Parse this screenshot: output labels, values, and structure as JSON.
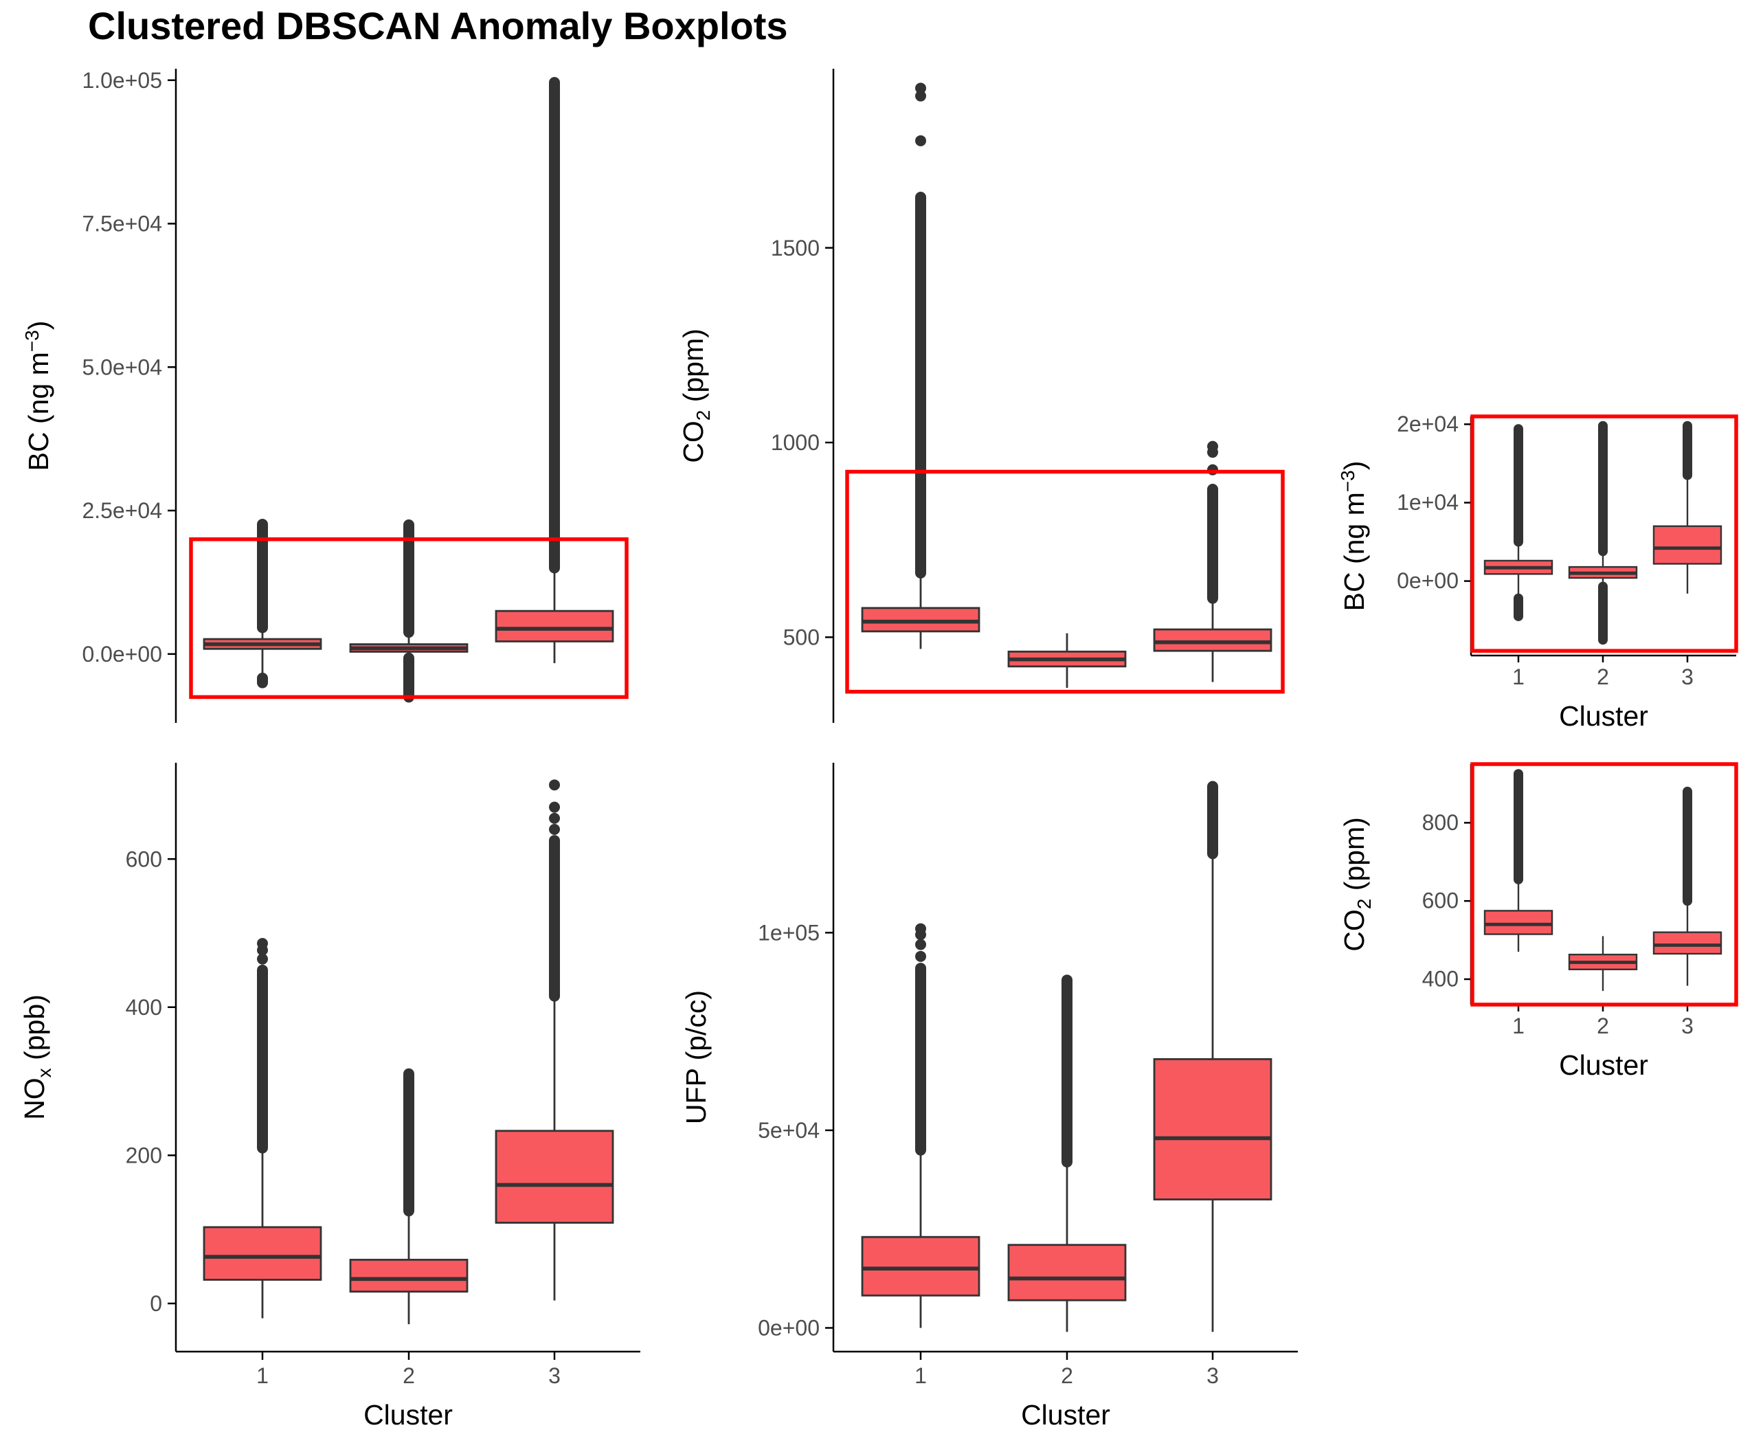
{
  "title": "Clustered DBSCAN Anomaly Boxplots",
  "colors": {
    "box_fill": "#F8595F",
    "box_line": "#333333",
    "outlier": "#333333",
    "axis": "#000000",
    "highlight": "#FF0000"
  },
  "chart_data": [
    {
      "id": "bc_main",
      "type": "box",
      "categories": [
        "1",
        "2",
        "3"
      ],
      "ylabel": "BC (ng m−3)",
      "ylabel_parts": [
        "BC (ng m",
        "−3",
        ")"
      ],
      "xlabel": "",
      "ylim": [
        -12000,
        102000
      ],
      "yticks": [
        0,
        25000,
        50000,
        75000,
        100000
      ],
      "ytick_labels": [
        "0.0e+00",
        "2.5e+04",
        "5.0e+04",
        "7.5e+04",
        "1.0e+05"
      ],
      "show_x_ticks": false,
      "boxes": [
        {
          "category": "1",
          "whisker_low": -4200,
          "q1": 900,
          "median": 1700,
          "q3": 2600,
          "whisker_high": 4600,
          "outliers_high": [
            4600,
            22600
          ],
          "outliers_low": [
            -4200,
            -5000
          ]
        },
        {
          "category": "2",
          "whisker_low": -700,
          "q1": 400,
          "median": 1000,
          "q3": 1700,
          "whisker_high": 3800,
          "outliers_high": [
            3800,
            22500
          ],
          "outliers_low": [
            -700,
            -7500
          ]
        },
        {
          "category": "3",
          "whisker_low": -1600,
          "q1": 2200,
          "median": 4400,
          "q3": 7500,
          "whisker_high": 15000,
          "outliers_high": [
            15000,
            99600
          ],
          "outliers_low": []
        }
      ],
      "highlight": {
        "y_range": [
          -7500,
          20000
        ]
      }
    },
    {
      "id": "co2_main",
      "type": "box",
      "categories": [
        "1",
        "2",
        "3"
      ],
      "ylabel": "CO2 (ppm)",
      "ylabel_parts": [
        "CO",
        "2",
        " (ppm)"
      ],
      "xlabel": "",
      "ylim": [
        280,
        1960
      ],
      "yticks": [
        500,
        1000,
        1500
      ],
      "ytick_labels": [
        "500",
        "1000",
        "1500"
      ],
      "show_x_ticks": false,
      "boxes": [
        {
          "category": "1",
          "whisker_low": 470,
          "q1": 515,
          "median": 540,
          "q3": 575,
          "whisker_high": 665,
          "outliers_high": [
            665,
            1630
          ],
          "outliers_extra": [
            1775,
            1890,
            1910
          ],
          "outliers_low": []
        },
        {
          "category": "2",
          "whisker_low": 370,
          "q1": 425,
          "median": 443,
          "q3": 463,
          "whisker_high": 510,
          "outliers_high": [],
          "outliers_low": []
        },
        {
          "category": "3",
          "whisker_low": 385,
          "q1": 465,
          "median": 487,
          "q3": 520,
          "whisker_high": 600,
          "outliers_high": [
            600,
            880
          ],
          "outliers_extra": [
            930,
            975,
            990
          ],
          "outliers_low": []
        }
      ],
      "highlight": {
        "y_range": [
          360,
          925
        ]
      }
    },
    {
      "id": "bc_inset",
      "type": "box",
      "categories": [
        "1",
        "2",
        "3"
      ],
      "ylabel": "BC (ng m−3)",
      "ylabel_parts": [
        "BC (ng m",
        "−3",
        ")"
      ],
      "xlabel": "Cluster",
      "ylim": [
        -9500,
        21000
      ],
      "yticks": [
        0,
        10000,
        20000
      ],
      "ytick_labels": [
        "0e+00",
        "1e+04",
        "2e+04"
      ],
      "show_x_ticks": true,
      "boxes": [
        {
          "category": "1",
          "whisker_low": -2200,
          "q1": 900,
          "median": 1700,
          "q3": 2600,
          "whisker_high": 5000,
          "outliers_high": [
            5000,
            19400
          ],
          "outliers_low": [
            -2200,
            -4500
          ]
        },
        {
          "category": "2",
          "whisker_low": -700,
          "q1": 400,
          "median": 1000,
          "q3": 1800,
          "whisker_high": 3800,
          "outliers_high": [
            3800,
            19800
          ],
          "outliers_low": [
            -700,
            -7500
          ]
        },
        {
          "category": "3",
          "whisker_low": -1600,
          "q1": 2200,
          "median": 4200,
          "q3": 7000,
          "whisker_high": 13500,
          "outliers_high": [
            13500,
            19800
          ],
          "outliers_low": []
        }
      ],
      "highlight": {
        "y_range": [
          -8900,
          21000
        ]
      }
    },
    {
      "id": "co2_inset",
      "type": "box",
      "categories": [
        "1",
        "2",
        "3"
      ],
      "ylabel": "CO2 (ppm)",
      "ylabel_parts": [
        "CO",
        "2",
        " (ppm)"
      ],
      "xlabel": "Cluster",
      "ylim": [
        335,
        950
      ],
      "yticks": [
        400,
        600,
        800
      ],
      "ytick_labels": [
        "400",
        "600",
        "800"
      ],
      "show_x_ticks": true,
      "boxes": [
        {
          "category": "1",
          "whisker_low": 470,
          "q1": 515,
          "median": 540,
          "q3": 575,
          "whisker_high": 655,
          "outliers_high": [
            655,
            925
          ],
          "outliers_low": []
        },
        {
          "category": "2",
          "whisker_low": 370,
          "q1": 425,
          "median": 443,
          "q3": 463,
          "whisker_high": 510,
          "outliers_high": [],
          "outliers_low": []
        },
        {
          "category": "3",
          "whisker_low": 383,
          "q1": 465,
          "median": 487,
          "q3": 520,
          "whisker_high": 600,
          "outliers_high": [
            600,
            880
          ],
          "outliers_low": []
        }
      ],
      "highlight": {
        "y_range": [
          335,
          950
        ]
      }
    },
    {
      "id": "nox_main",
      "type": "box",
      "categories": [
        "1",
        "2",
        "3"
      ],
      "ylabel": "NOx (ppb)",
      "ylabel_parts": [
        "NO",
        "x",
        " (ppb)"
      ],
      "xlabel": "Cluster",
      "ylim": [
        -65,
        730
      ],
      "yticks": [
        0,
        200,
        400,
        600
      ],
      "ytick_labels": [
        "0",
        "200",
        "400",
        "600"
      ],
      "show_x_ticks": true,
      "boxes": [
        {
          "category": "1",
          "whisker_low": -20,
          "q1": 32,
          "median": 63,
          "q3": 103,
          "whisker_high": 210,
          "outliers_high": [
            210,
            450
          ],
          "outliers_extra": [
            465,
            477,
            486
          ],
          "outliers_low": []
        },
        {
          "category": "2",
          "whisker_low": -28,
          "q1": 16,
          "median": 33,
          "q3": 59,
          "whisker_high": 125,
          "outliers_high": [
            125,
            310
          ],
          "outliers_low": []
        },
        {
          "category": "3",
          "whisker_low": 4,
          "q1": 109,
          "median": 160,
          "q3": 233,
          "whisker_high": 415,
          "outliers_high": [
            415,
            625
          ],
          "outliers_extra": [
            640,
            655,
            670,
            700
          ],
          "outliers_low": []
        }
      ]
    },
    {
      "id": "ufp_main",
      "type": "box",
      "categories": [
        "1",
        "2",
        "3"
      ],
      "ylabel": "UFP (p/cc)",
      "ylabel_parts": [
        "UFP (p/cc)",
        "",
        ""
      ],
      "xlabel": "Cluster",
      "ylim": [
        -6000,
        143000
      ],
      "yticks": [
        0,
        50000,
        100000
      ],
      "ytick_labels": [
        "0e+00",
        "5e+04",
        "1e+05"
      ],
      "show_x_ticks": true,
      "boxes": [
        {
          "category": "1",
          "whisker_low": 0,
          "q1": 8200,
          "median": 15000,
          "q3": 23000,
          "whisker_high": 45000,
          "outliers_high": [
            45000,
            91000
          ],
          "outliers_extra": [
            94000,
            97000,
            99500,
            101000
          ],
          "outliers_low": []
        },
        {
          "category": "2",
          "whisker_low": -1000,
          "q1": 7000,
          "median": 12500,
          "q3": 21000,
          "whisker_high": 42000,
          "outliers_high": [
            42000,
            88000
          ],
          "outliers_low": []
        },
        {
          "category": "3",
          "whisker_low": -1000,
          "q1": 32500,
          "median": 48000,
          "q3": 68000,
          "whisker_high": 120000,
          "outliers_high": [
            120000,
            137000
          ],
          "outliers_low": []
        }
      ]
    }
  ]
}
